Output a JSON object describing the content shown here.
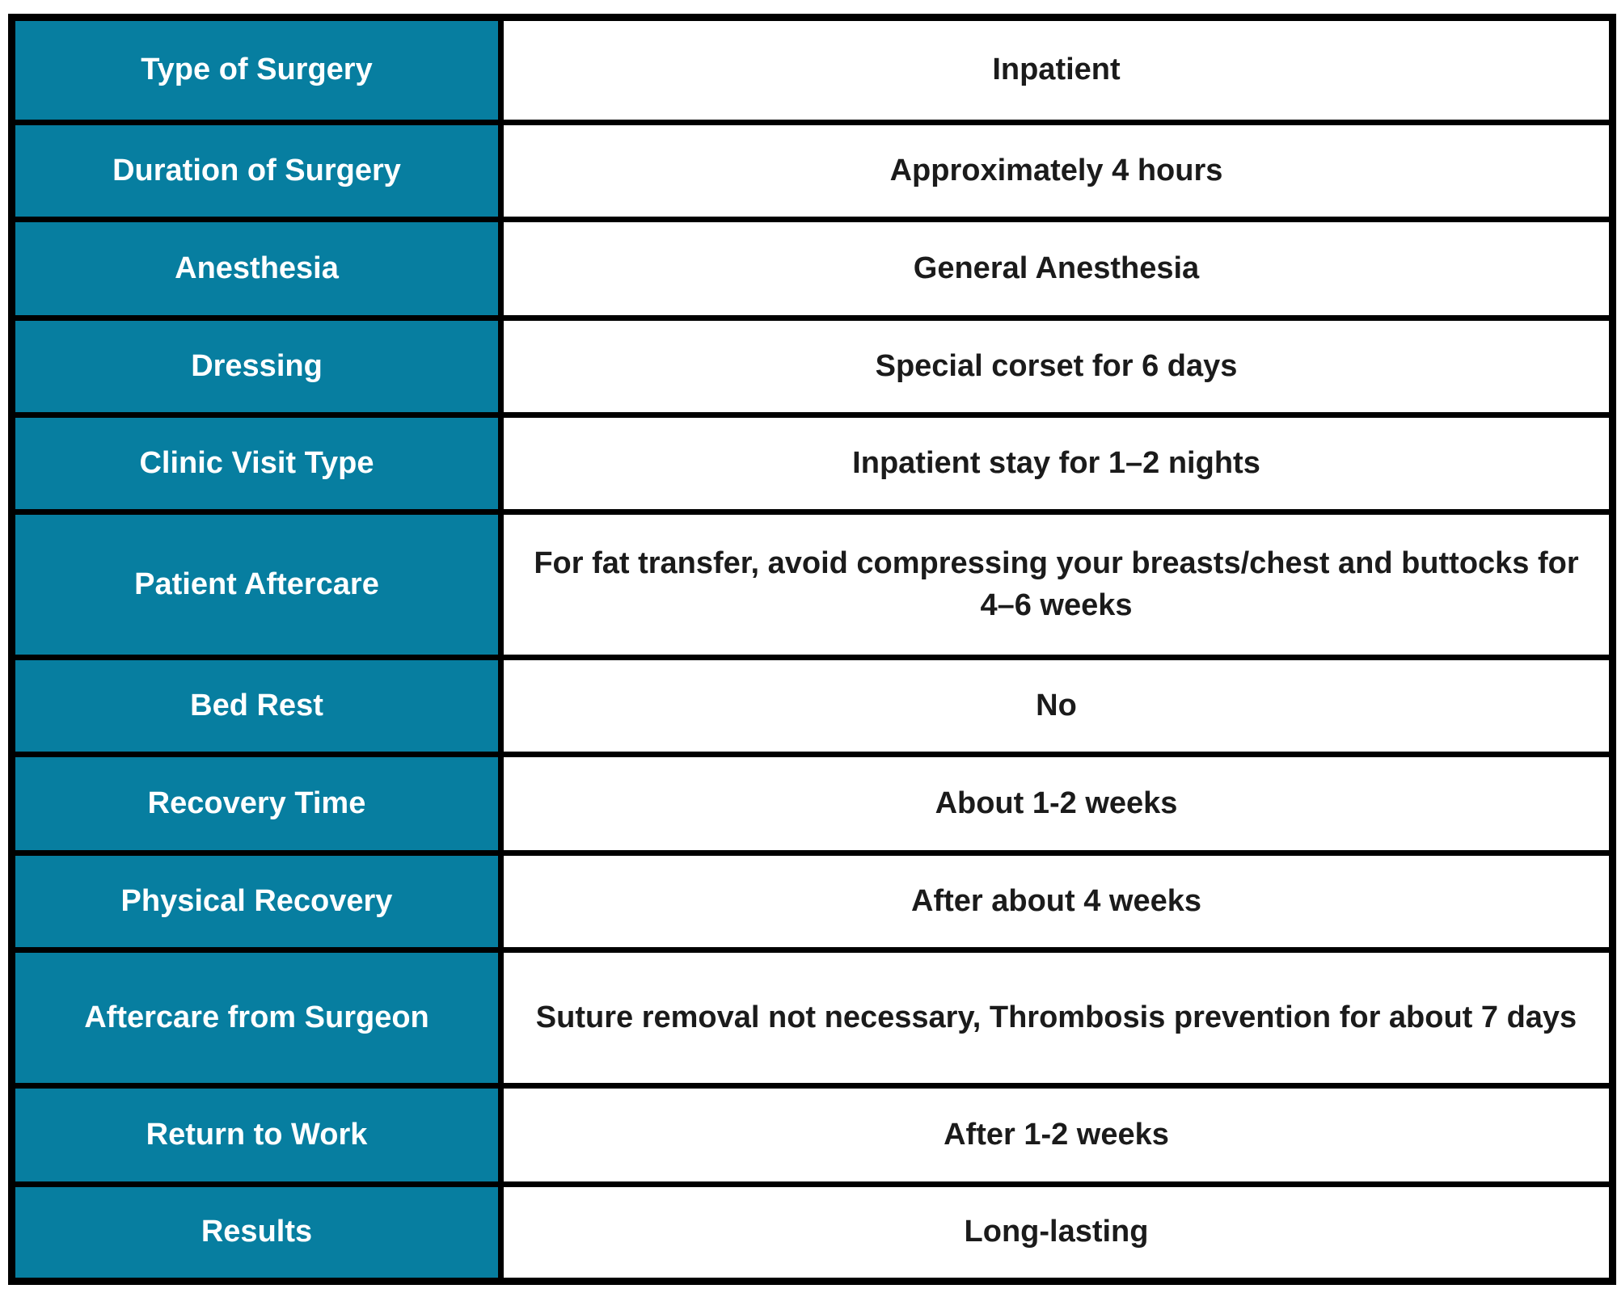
{
  "table": {
    "accent_color": "#077EA0",
    "border_color": "#000000",
    "label_text_color": "#FFFFFF",
    "value_text_color": "#1B1B1B",
    "rows": [
      {
        "label": "Type of Surgery",
        "value": "Inpatient"
      },
      {
        "label": "Duration of Surgery",
        "value": "Approximately 4 hours"
      },
      {
        "label": "Anesthesia",
        "value": "General Anesthesia"
      },
      {
        "label": "Dressing",
        "value": "Special corset for 6 days"
      },
      {
        "label": "Clinic Visit Type",
        "value": "Inpatient stay for 1–2 nights"
      },
      {
        "label": "Patient Aftercare",
        "value": "For fat transfer, avoid compressing your breasts/chest and buttocks for 4–6 weeks"
      },
      {
        "label": "Bed Rest",
        "value": "No"
      },
      {
        "label": "Recovery Time",
        "value": "About 1-2 weeks"
      },
      {
        "label": "Physical Recovery",
        "value": "After about 4 weeks"
      },
      {
        "label": "Aftercare from Surgeon",
        "value": "Suture removal not necessary, Thrombosis prevention for about 7 days"
      },
      {
        "label": "Return to Work",
        "value": "After 1-2 weeks"
      },
      {
        "label": "Results",
        "value": "Long-lasting"
      }
    ]
  }
}
